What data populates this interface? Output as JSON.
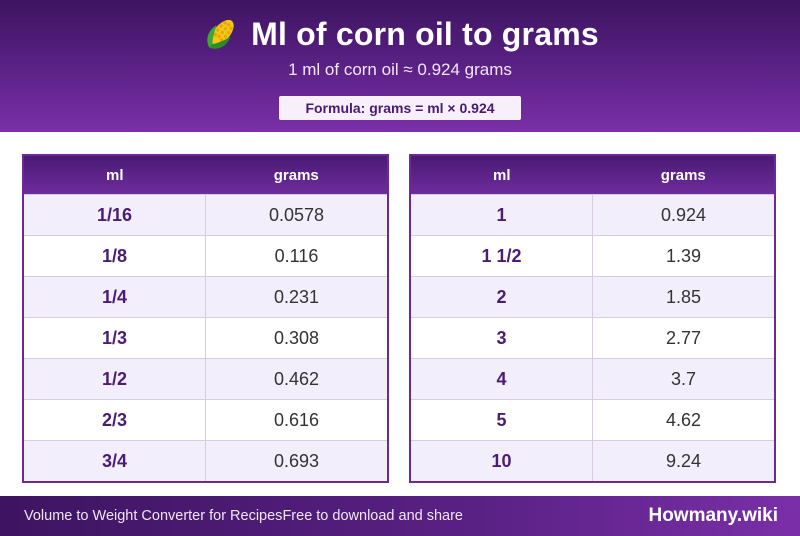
{
  "header": {
    "icon": "corn-icon",
    "title": "Ml of corn oil to grams",
    "subtitle": "1 ml of corn oil ≈ 0.924 grams",
    "formula": "Formula: grams = ml × 0.924"
  },
  "tables": [
    {
      "headers": [
        "ml",
        "grams"
      ],
      "rows": [
        {
          "ml": "1/16",
          "grams": "0.0578"
        },
        {
          "ml": "1/8",
          "grams": "0.116"
        },
        {
          "ml": "1/4",
          "grams": "0.231"
        },
        {
          "ml": "1/3",
          "grams": "0.308"
        },
        {
          "ml": "1/2",
          "grams": "0.462"
        },
        {
          "ml": "2/3",
          "grams": "0.616"
        },
        {
          "ml": "3/4",
          "grams": "0.693"
        }
      ]
    },
    {
      "headers": [
        "ml",
        "grams"
      ],
      "rows": [
        {
          "ml": "1",
          "grams": "0.924"
        },
        {
          "ml": "1 1/2",
          "grams": "1.39"
        },
        {
          "ml": "2",
          "grams": "1.85"
        },
        {
          "ml": "3",
          "grams": "2.77"
        },
        {
          "ml": "4",
          "grams": "3.7"
        },
        {
          "ml": "5",
          "grams": "4.62"
        },
        {
          "ml": "10",
          "grams": "9.24"
        }
      ]
    }
  ],
  "footer": {
    "left": "Volume to Weight Converter for Recipes",
    "middle": "Free to download and share",
    "brand": "Howmany.wiki"
  },
  "colors": {
    "accent": "#5a2185",
    "header_dark": "#3d1461",
    "row_alt": "#f3eefb"
  }
}
